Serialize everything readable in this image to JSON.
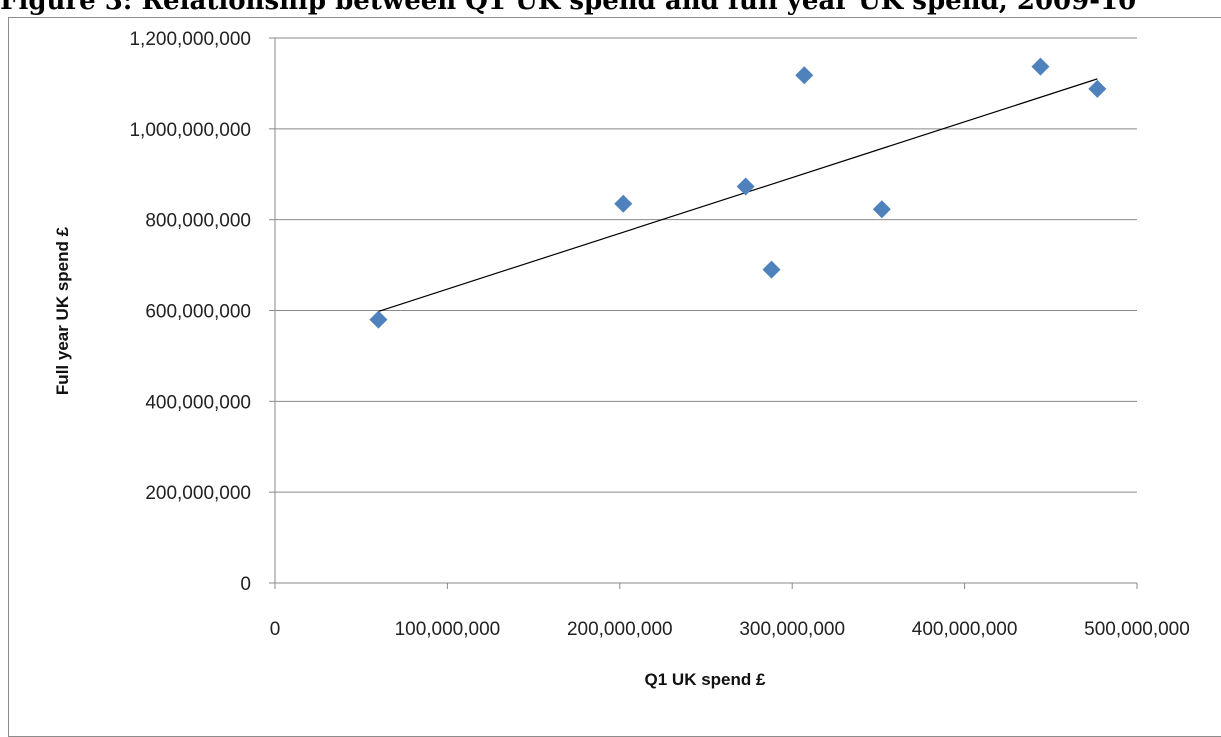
{
  "caption": "Figure 3: Relationship between Q1 UK spend and full year UK spend, 2009-10",
  "chart_data": {
    "type": "scatter",
    "xlabel": "Q1 UK spend £",
    "ylabel": "Full year UK spend £",
    "xlim": [
      0,
      500000000
    ],
    "ylim": [
      0,
      1200000000
    ],
    "x_ticks": [
      0,
      100000000,
      200000000,
      300000000,
      400000000,
      500000000
    ],
    "y_ticks": [
      0,
      200000000,
      400000000,
      600000000,
      800000000,
      1000000000,
      1200000000
    ],
    "x_tick_labels": [
      "0",
      "100,000,000",
      "200,000,000",
      "300,000,000",
      "400,000,000",
      "500,000,000"
    ],
    "y_tick_labels": [
      "0",
      "200,000,000",
      "400,000,000",
      "600,000,000",
      "800,000,000",
      "1,000,000,000",
      "1,200,000,000"
    ],
    "grid": "horizontal",
    "legend": "none",
    "marker": "diamond",
    "marker_color": "#4f81bd",
    "trendline_color": "#000000",
    "points": [
      {
        "x": 60000000,
        "y": 580000000
      },
      {
        "x": 202000000,
        "y": 835000000
      },
      {
        "x": 273000000,
        "y": 873000000
      },
      {
        "x": 288000000,
        "y": 690000000
      },
      {
        "x": 307000000,
        "y": 1118000000
      },
      {
        "x": 352000000,
        "y": 823000000
      },
      {
        "x": 444000000,
        "y": 1137000000
      },
      {
        "x": 477000000,
        "y": 1088000000
      }
    ],
    "trendline": {
      "x": [
        60000000,
        477000000
      ],
      "y": [
        598000000,
        1110000000
      ]
    }
  }
}
